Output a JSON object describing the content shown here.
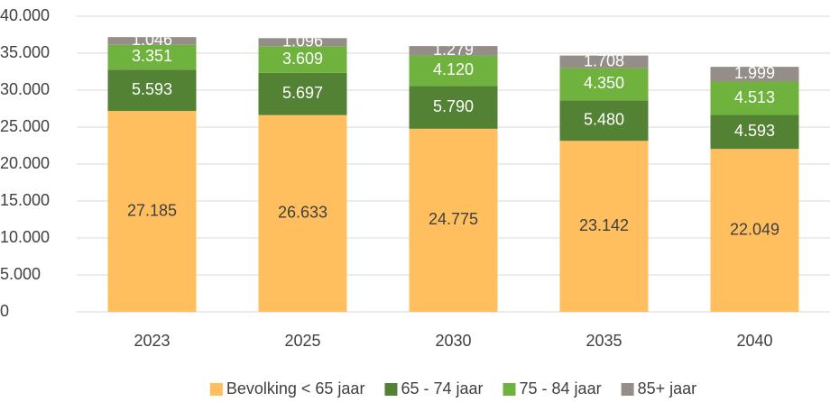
{
  "chart_data": {
    "type": "stacked_bar",
    "categories": [
      "2023",
      "2025",
      "2030",
      "2035",
      "2040"
    ],
    "series": [
      {
        "name": "Bevolking < 65 jaar",
        "color": "#ffbf5f",
        "values": [
          27185,
          26633,
          24775,
          23142,
          22049
        ],
        "value_labels": [
          "27.185",
          "26.633",
          "24.775",
          "23.142",
          "22.049"
        ]
      },
      {
        "name": "65 - 74 jaar",
        "color": "#548235",
        "values": [
          5593,
          5697,
          5790,
          5480,
          4593
        ],
        "value_labels": [
          "5.593",
          "5.697",
          "5.790",
          "5.480",
          "4.593"
        ]
      },
      {
        "name": "75 - 84 jaar",
        "color": "#6fb23e",
        "values": [
          3351,
          3609,
          4120,
          4350,
          4513
        ],
        "value_labels": [
          "3.351",
          "3.609",
          "4.120",
          "4.350",
          "4.513"
        ]
      },
      {
        "name": "85+ jaar",
        "color": "#958e88",
        "values": [
          1046,
          1096,
          1279,
          1708,
          1999
        ],
        "value_labels": [
          "1.046",
          "1.096",
          "1.279",
          "1.708",
          "1.999"
        ]
      }
    ],
    "ylim": [
      0,
      40000
    ],
    "yticks": [
      0,
      {
        "value": 5000,
        "label": "5.000"
      },
      {
        "value": 10000,
        "label": "10.000"
      },
      {
        "value": 15000,
        "label": "15.000"
      },
      {
        "value": 20000,
        "label": "20.000"
      },
      {
        "value": 25000,
        "label": "25.000"
      },
      {
        "value": 30000,
        "label": "30.000"
      },
      {
        "value": 35000,
        "label": "35.000"
      },
      {
        "value": 40000,
        "label": "40.000"
      }
    ],
    "grid": true,
    "legend": "bottom"
  }
}
